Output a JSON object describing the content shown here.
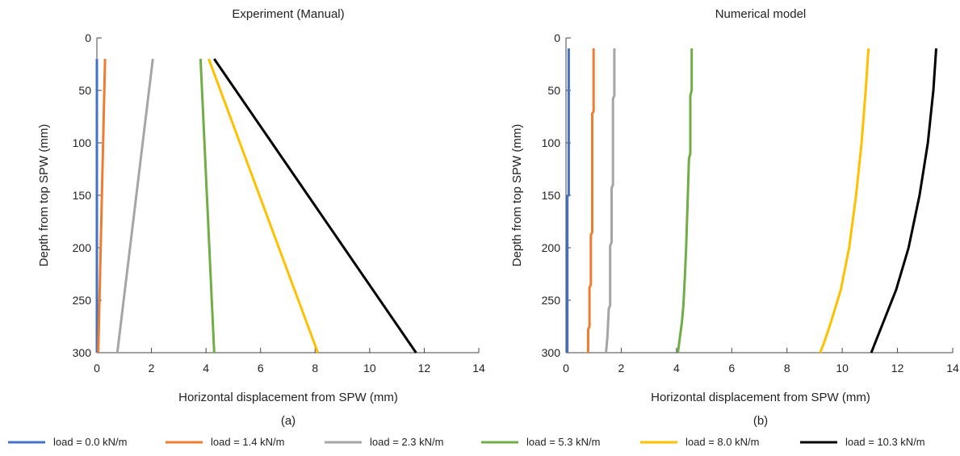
{
  "panel_labels": [
    "(a)",
    "(b)"
  ],
  "legend": [
    {
      "label": "load = 0.0 kN/m",
      "color": "#4472C4"
    },
    {
      "label": "load = 1.4 kN/m",
      "color": "#ED7D31"
    },
    {
      "label": "load = 2.3 kN/m",
      "color": "#A5A5A5"
    },
    {
      "label": "load = 5.3 kN/m",
      "color": "#70AD47"
    },
    {
      "label": "load = 8.0 kN/m",
      "color": "#FFC000"
    },
    {
      "label": "load = 10.3 kN/m",
      "color": "#000000"
    }
  ],
  "chart_data": [
    {
      "type": "line",
      "title": "Experiment (Manual)",
      "xlabel": "Horizontal displacement from SPW (mm)",
      "ylabel": "Depth from top SPW (mm)",
      "xlim": [
        0,
        14
      ],
      "ylim": [
        0,
        300
      ],
      "y_inverted": true,
      "x_axis_position": "bottom",
      "grid": false,
      "xticks": [
        0,
        2,
        4,
        6,
        8,
        10,
        12,
        14
      ],
      "yticks": [
        0,
        50,
        100,
        150,
        200,
        250,
        300
      ],
      "series": [
        {
          "name": "load = 0.0 kN/m",
          "color": "#4472C4",
          "points": [
            [
              0.0,
              20
            ],
            [
              0.0,
              300
            ]
          ]
        },
        {
          "name": "load = 1.4 kN/m",
          "color": "#ED7D31",
          "points": [
            [
              0.3,
              20
            ],
            [
              0.05,
              300
            ]
          ]
        },
        {
          "name": "load = 2.3 kN/m",
          "color": "#A5A5A5",
          "points": [
            [
              2.05,
              20
            ],
            [
              0.75,
              300
            ]
          ]
        },
        {
          "name": "load = 5.3 kN/m",
          "color": "#70AD47",
          "points": [
            [
              3.8,
              20
            ],
            [
              4.3,
              300
            ]
          ]
        },
        {
          "name": "load = 8.0 kN/m",
          "color": "#FFC000",
          "points": [
            [
              4.1,
              20
            ],
            [
              8.1,
              300
            ]
          ]
        },
        {
          "name": "load = 10.3 kN/m",
          "color": "#000000",
          "points": [
            [
              4.3,
              20
            ],
            [
              11.7,
              300
            ]
          ]
        }
      ]
    },
    {
      "type": "line",
      "title": "Numerical model",
      "xlabel": "Horizontal displacement from SPW (mm)",
      "ylabel": "Depth from top SPW (mm)",
      "xlim": [
        0,
        14
      ],
      "ylim": [
        0,
        300
      ],
      "y_inverted": true,
      "x_axis_position": "bottom",
      "grid": false,
      "xticks": [
        0,
        2,
        4,
        6,
        8,
        10,
        12,
        14
      ],
      "yticks": [
        0,
        50,
        100,
        150,
        200,
        250,
        300
      ],
      "series": [
        {
          "name": "load = 0.0 kN/m",
          "color": "#4472C4",
          "points": [
            [
              0.1,
              10
            ],
            [
              0.1,
              150
            ],
            [
              0.05,
              151
            ],
            [
              0.05,
              300
            ]
          ]
        },
        {
          "name": "load = 1.4 kN/m",
          "color": "#ED7D31",
          "points": [
            [
              1.0,
              10
            ],
            [
              1.0,
              70
            ],
            [
              0.95,
              72
            ],
            [
              0.95,
              185
            ],
            [
              0.9,
              188
            ],
            [
              0.9,
              235
            ],
            [
              0.85,
              238
            ],
            [
              0.85,
              275
            ],
            [
              0.8,
              278
            ],
            [
              0.8,
              300
            ]
          ]
        },
        {
          "name": "load = 2.3 kN/m",
          "color": "#A5A5A5",
          "points": [
            [
              1.75,
              10
            ],
            [
              1.75,
              55
            ],
            [
              1.7,
              58
            ],
            [
              1.7,
              140
            ],
            [
              1.65,
              143
            ],
            [
              1.65,
              195
            ],
            [
              1.6,
              198
            ],
            [
              1.6,
              255
            ],
            [
              1.55,
              258
            ],
            [
              1.5,
              285
            ],
            [
              1.45,
              300
            ]
          ]
        },
        {
          "name": "load = 5.3 kN/m",
          "color": "#70AD47",
          "points": [
            [
              4.55,
              10
            ],
            [
              4.55,
              50
            ],
            [
              4.5,
              55
            ],
            [
              4.5,
              110
            ],
            [
              4.45,
              115
            ],
            [
              4.4,
              160
            ],
            [
              4.35,
              200
            ],
            [
              4.3,
              230
            ],
            [
              4.25,
              255
            ],
            [
              4.2,
              270
            ],
            [
              4.15,
              280
            ],
            [
              4.1,
              290
            ],
            [
              4.05,
              300
            ]
          ]
        },
        {
          "name": "load = 8.0 kN/m",
          "color": "#FFC000",
          "points": [
            [
              10.95,
              10
            ],
            [
              10.85,
              50
            ],
            [
              10.7,
              100
            ],
            [
              10.5,
              150
            ],
            [
              10.25,
              200
            ],
            [
              9.95,
              240
            ],
            [
              9.6,
              270
            ],
            [
              9.35,
              290
            ],
            [
              9.2,
              300
            ]
          ]
        },
        {
          "name": "load = 10.3 kN/m",
          "color": "#000000",
          "points": [
            [
              13.4,
              10
            ],
            [
              13.3,
              50
            ],
            [
              13.1,
              100
            ],
            [
              12.8,
              150
            ],
            [
              12.4,
              200
            ],
            [
              11.95,
              240
            ],
            [
              11.5,
              270
            ],
            [
              11.2,
              290
            ],
            [
              11.05,
              300
            ]
          ]
        }
      ]
    }
  ]
}
